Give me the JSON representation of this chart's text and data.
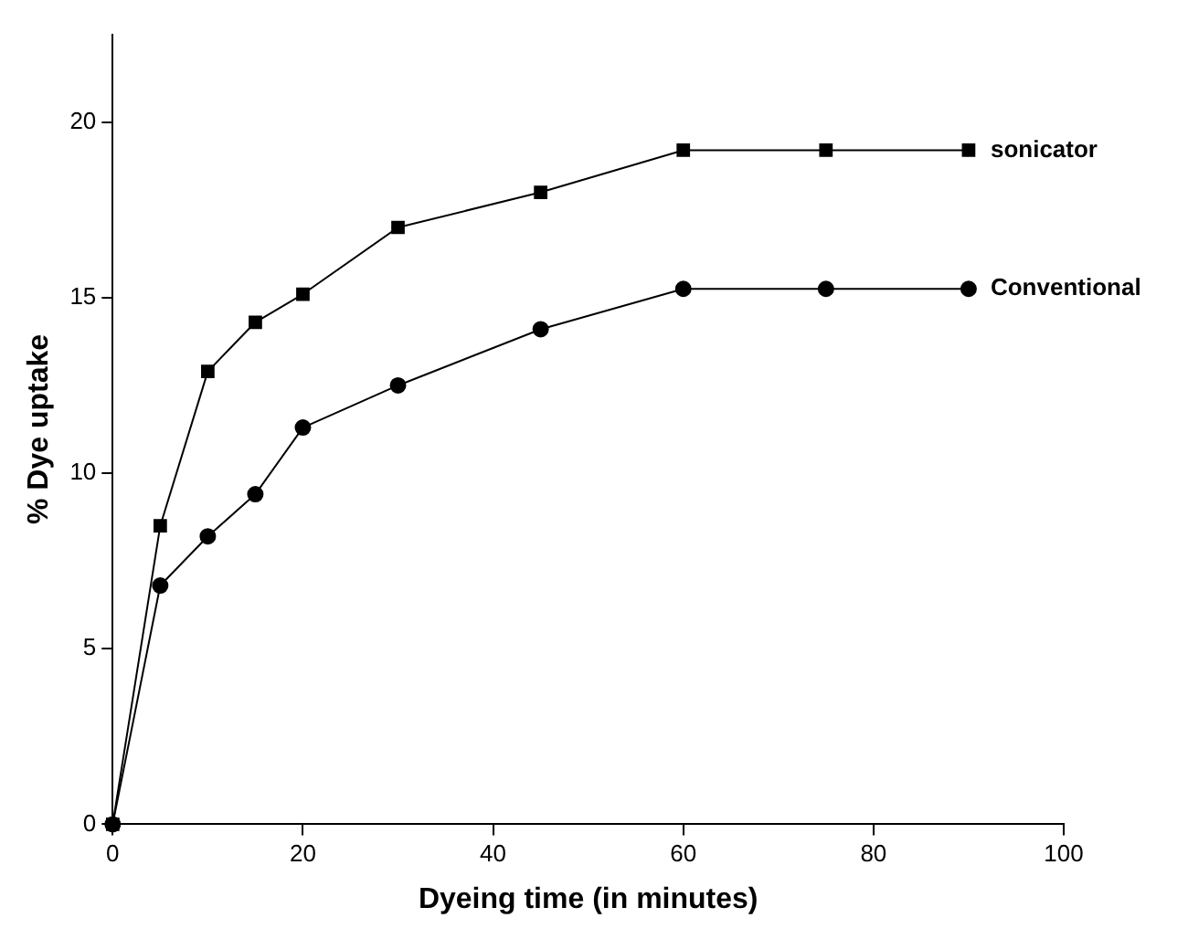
{
  "chart_data": {
    "type": "line",
    "xlabel": "Dyeing time (in minutes)",
    "ylabel": "% Dye uptake",
    "x": [
      0,
      5,
      10,
      15,
      20,
      30,
      45,
      60,
      75,
      90
    ],
    "series": [
      {
        "name": "sonicator",
        "color": "#000000",
        "marker": "square",
        "values": [
          0,
          8.5,
          12.9,
          14.3,
          15.1,
          17.0,
          18.0,
          19.2,
          19.2,
          19.2
        ]
      },
      {
        "name": "Conventional",
        "color": "#000000",
        "marker": "circle",
        "values": [
          0,
          6.8,
          8.2,
          9.4,
          11.3,
          12.5,
          14.1,
          15.25,
          15.25,
          15.25
        ]
      }
    ],
    "xlim": [
      0,
      100
    ],
    "xticks": [
      0,
      20,
      40,
      60,
      80,
      100
    ],
    "ylim": [
      0,
      22.5
    ],
    "yticks": [
      0,
      5,
      10,
      15,
      20
    ],
    "grid": false,
    "legend": false,
    "line_style": "solid"
  }
}
